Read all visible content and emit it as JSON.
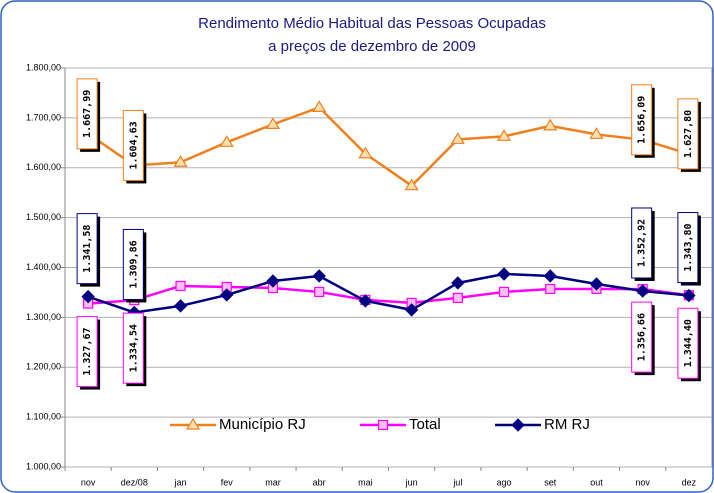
{
  "chart_data": {
    "type": "line",
    "title": "Rendimento Médio Habitual das Pessoas Ocupadas",
    "subtitle": "a preços de dezembro de 2009",
    "categories": [
      "nov",
      "dez/08",
      "jan",
      "fev",
      "mar",
      "abr",
      "mai",
      "jun",
      "jul",
      "ago",
      "set",
      "out",
      "nov",
      "dez"
    ],
    "series": [
      {
        "name": "Município RJ",
        "color": "#f0801e",
        "marker": "triangle",
        "values": [
          1667.99,
          1604.63,
          1611,
          1651,
          1687,
          1721,
          1628,
          1564,
          1657,
          1663,
          1684,
          1667,
          1656.09,
          1627.8
        ],
        "value_labels": [
          "1.667,99",
          "1.604,63",
          null,
          null,
          null,
          null,
          null,
          null,
          null,
          null,
          null,
          null,
          "1.656,09",
          "1.627,80"
        ]
      },
      {
        "name": "Total",
        "color": "#ff00ff",
        "marker": "square",
        "values": [
          1327.67,
          1334.54,
          1363,
          1361,
          1359,
          1351,
          1335,
          1329,
          1339,
          1351,
          1357,
          1357,
          1356.66,
          1344.4
        ],
        "value_labels": [
          "1.327,67",
          "1.334,54",
          null,
          null,
          null,
          null,
          null,
          null,
          null,
          null,
          null,
          null,
          "1.356,66",
          "1.344,40"
        ]
      },
      {
        "name": "RM RJ",
        "color": "#000080",
        "marker": "diamond",
        "values": [
          1341.58,
          1309.86,
          1323,
          1345,
          1373,
          1383,
          1333,
          1315,
          1369,
          1387,
          1383,
          1367,
          1352.92,
          1343.8
        ],
        "value_labels": [
          "1.341,58",
          "1.309,86",
          null,
          null,
          null,
          null,
          null,
          null,
          null,
          null,
          null,
          null,
          "1.352,92",
          "1.343,80"
        ]
      }
    ],
    "ylim": [
      1000,
      1800
    ],
    "yticks": [
      {
        "value": 1000,
        "label": "1.000,00"
      },
      {
        "value": 1100,
        "label": "1.100,00"
      },
      {
        "value": 1200,
        "label": "1.200,00"
      },
      {
        "value": 1300,
        "label": "1.300,00"
      },
      {
        "value": 1400,
        "label": "1.400,00"
      },
      {
        "value": 1500,
        "label": "1.500,00"
      },
      {
        "value": 1600,
        "label": "1.600,00"
      },
      {
        "value": 1700,
        "label": "1.700,00"
      },
      {
        "value": 1800,
        "label": "1.800,00"
      }
    ],
    "grid": true
  }
}
